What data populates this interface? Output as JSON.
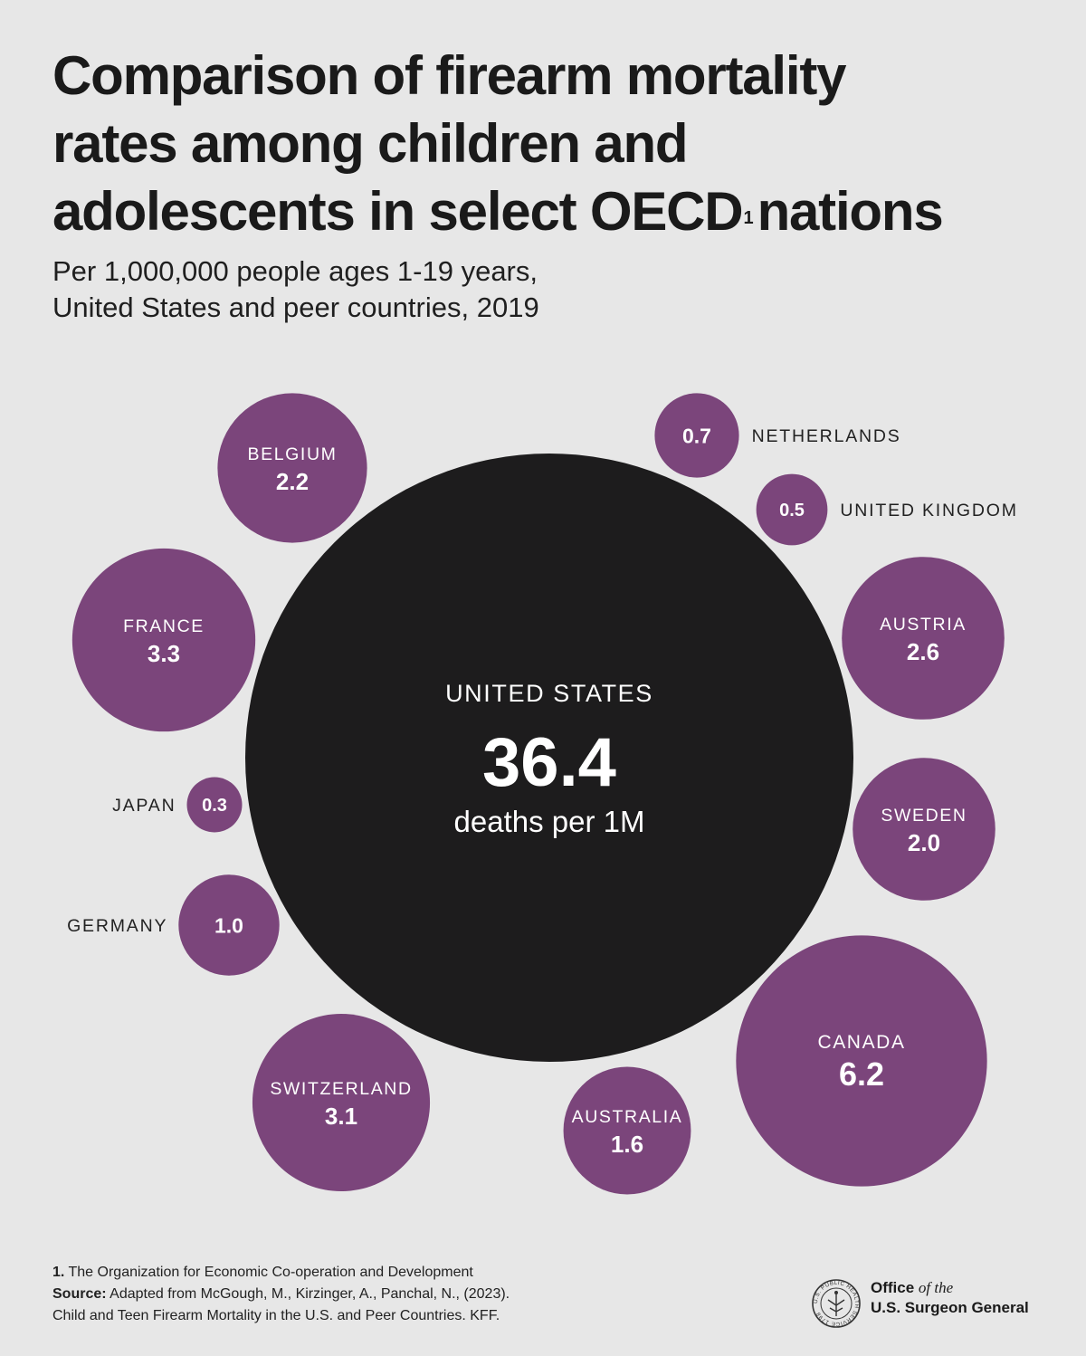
{
  "title": {
    "line1": "Comparison of firearm mortality",
    "line2": "rates among children and",
    "line3_pre": "adolescents in select OECD",
    "line3_sup": "1",
    "line3_post": "nations"
  },
  "subtitle": {
    "line1": "Per 1,000,000 people ages 1-19 years,",
    "line2": "United States and peer countries, 2019"
  },
  "colors": {
    "primary": "#1d1c1d",
    "peer": "#7b457b",
    "background": "#e7e7e7"
  },
  "chart_data": {
    "type": "bubble",
    "title": "Comparison of firearm mortality rates among children and adolescents in select OECD nations",
    "unit": "deaths per 1M",
    "primary": {
      "name": "UNITED STATES",
      "value": 36.4,
      "value_label": "36.4",
      "caption": "deaths per 1M"
    },
    "bubbles": [
      {
        "name": "BELGIUM",
        "value": 2.2,
        "value_label": "2.2"
      },
      {
        "name": "NETHERLANDS",
        "value": 0.7,
        "value_label": "0.7"
      },
      {
        "name": "UNITED KINGDOM",
        "value": 0.5,
        "value_label": "0.5"
      },
      {
        "name": "FRANCE",
        "value": 3.3,
        "value_label": "3.3"
      },
      {
        "name": "AUSTRIA",
        "value": 2.6,
        "value_label": "2.6"
      },
      {
        "name": "JAPAN",
        "value": 0.3,
        "value_label": "0.3"
      },
      {
        "name": "SWEDEN",
        "value": 2.0,
        "value_label": "2.0"
      },
      {
        "name": "GERMANY",
        "value": 1.0,
        "value_label": "1.0"
      },
      {
        "name": "CANADA",
        "value": 6.2,
        "value_label": "6.2"
      },
      {
        "name": "SWITZERLAND",
        "value": 3.1,
        "value_label": "3.1"
      },
      {
        "name": "AUSTRALIA",
        "value": 1.6,
        "value_label": "1.6"
      }
    ]
  },
  "footnote": {
    "note_num": "1.",
    "note_text": "The Organization for Economic Co-operation and Development",
    "source_label": "Source:",
    "source_text": "Adapted from McGough, M., Kirzinger, A., Panchal, N., (2023).",
    "source_line2": "Child and Teen Firearm Mortality in the U.S. and Peer Countries. KFF."
  },
  "logo": {
    "office": "Office",
    "of_the": "of the",
    "agency": "U.S. Surgeon General",
    "seal_text": "U.S. PUBLIC HEALTH SERVICE 1798"
  }
}
